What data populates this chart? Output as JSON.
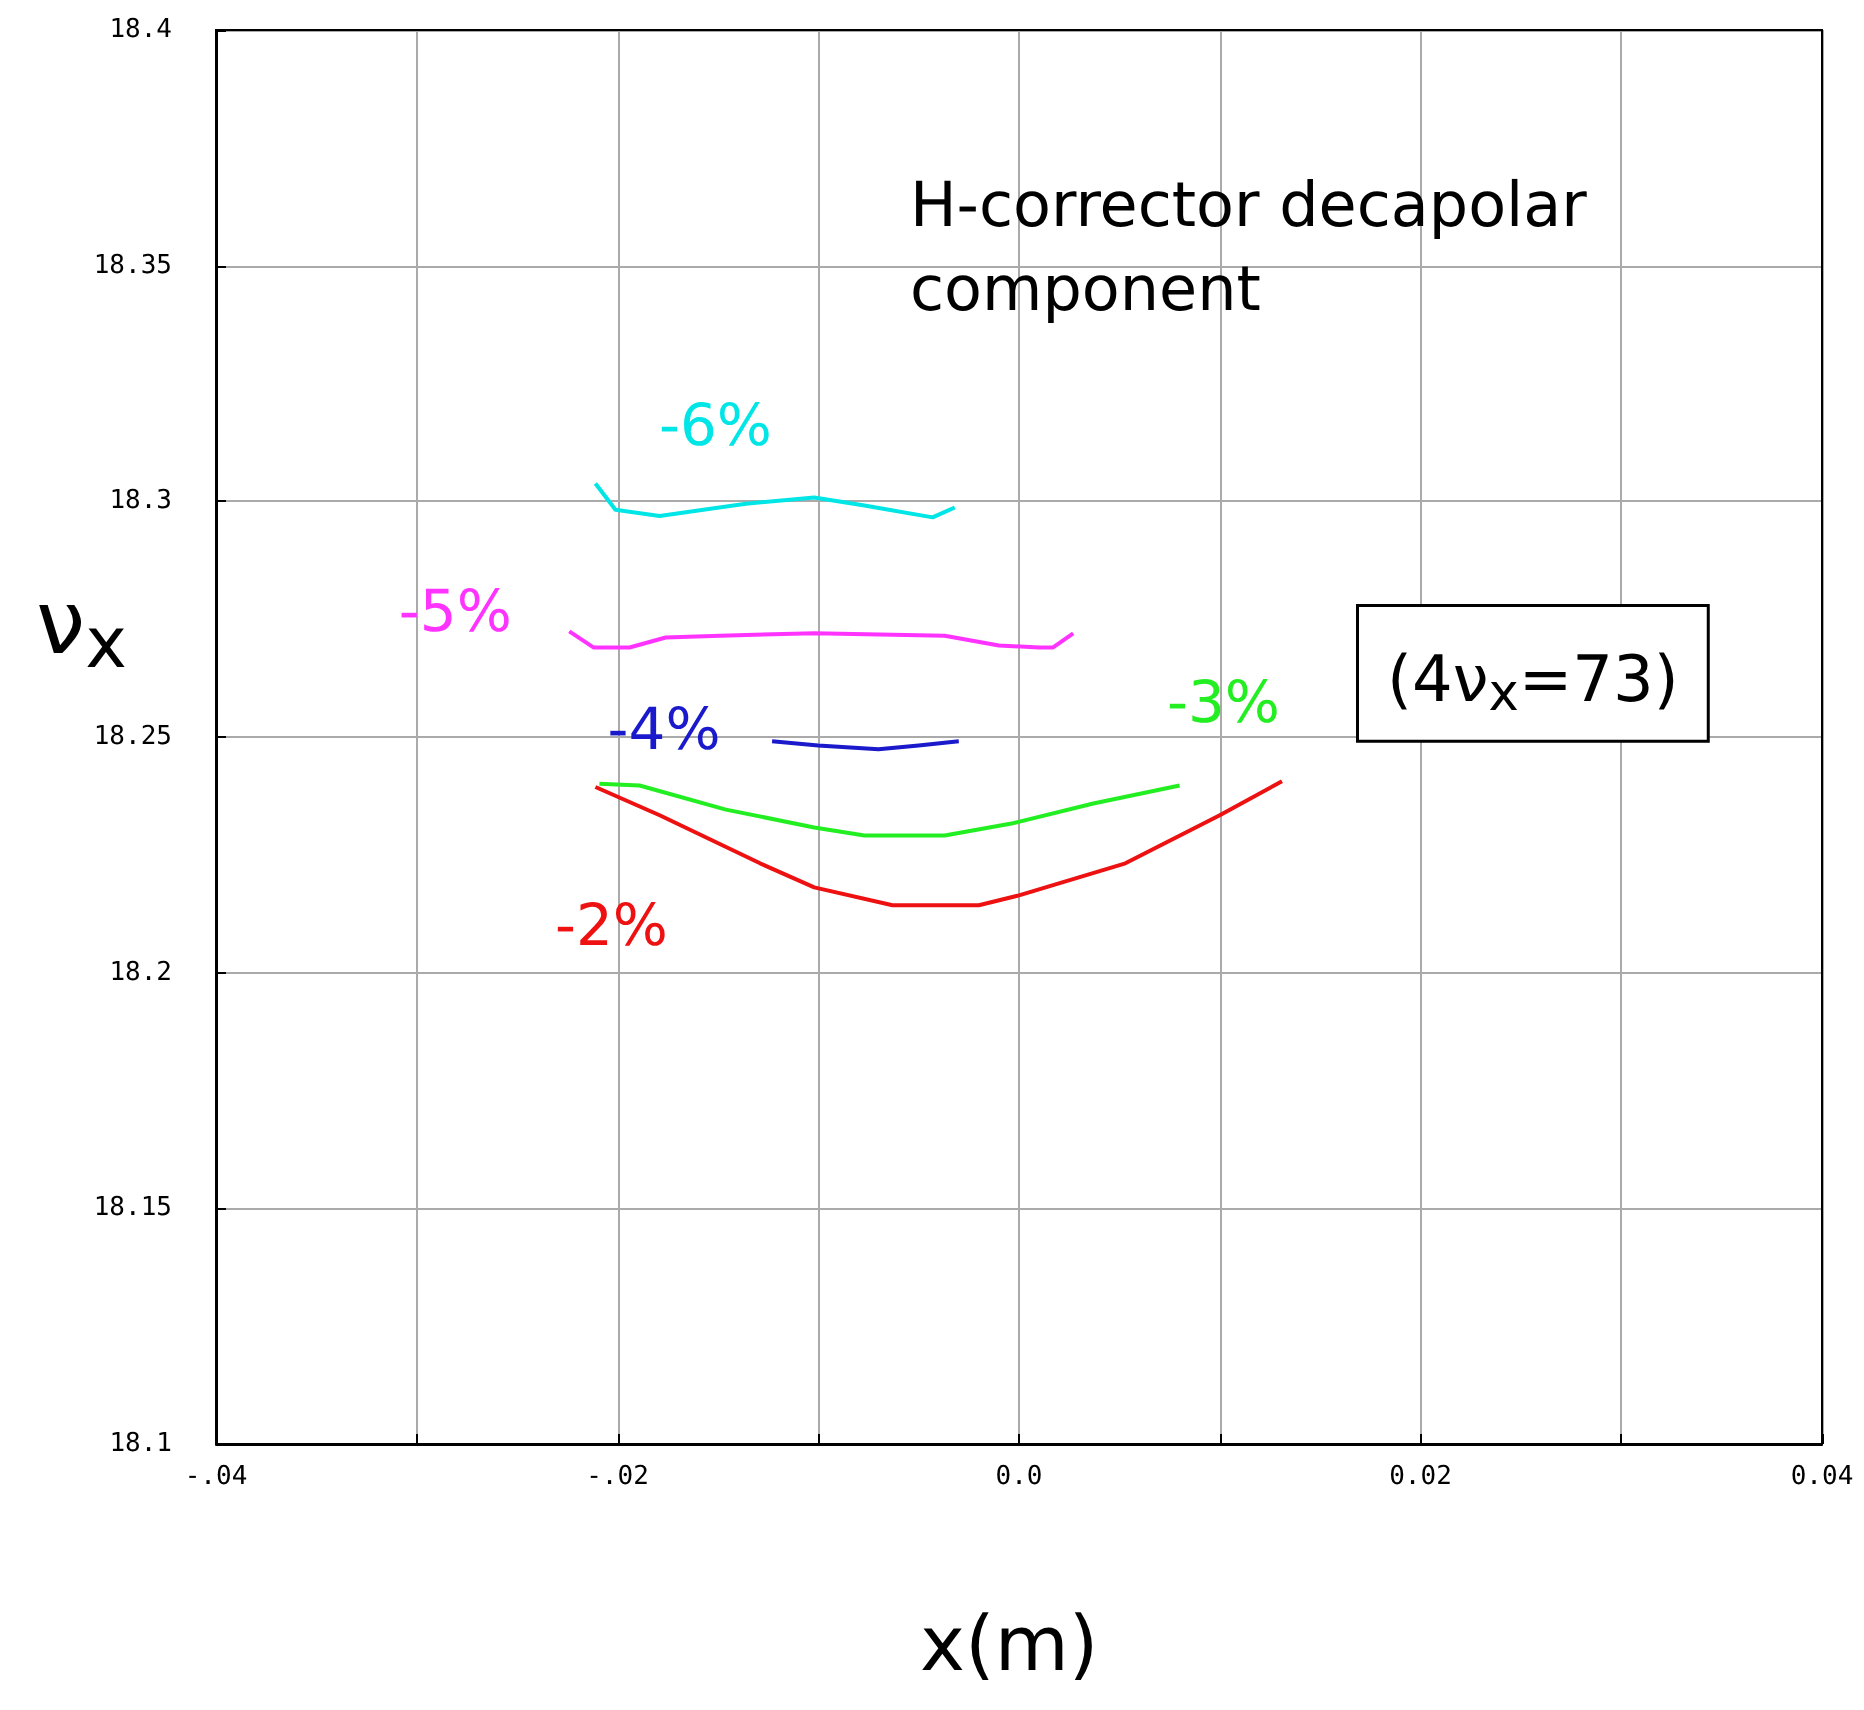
{
  "chart_data": {
    "type": "line",
    "title": "H-corrector decapolar component",
    "xlabel": "x(m)",
    "ylabel": "ν$_{x}$",
    "xlim": [
      -0.04,
      0.04
    ],
    "xticks": [
      {
        "value": -0.04,
        "label": "-.04"
      },
      {
        "value": -0.03,
        "label": null
      },
      {
        "value": -0.02,
        "label": "-.02"
      },
      {
        "value": -0.01,
        "label": null
      },
      {
        "value": 0,
        "label": "0.0"
      },
      {
        "value": 0.01,
        "label": null
      },
      {
        "value": 0.02,
        "label": "0.02"
      },
      {
        "value": 0.03,
        "label": null
      },
      {
        "value": 0.04,
        "label": "0.04"
      }
    ],
    "ylim": [
      18.1,
      18.4
    ],
    "yticks": [
      18.1,
      18.15,
      18.2,
      18.25,
      18.3,
      18.35,
      18.4
    ],
    "grid": true,
    "legend": false,
    "marker": "none",
    "line_style": "solid",
    "series": [
      {
        "name": "-6%",
        "color": "#00e5e5",
        "x": [
          -0.0211,
          -0.0201,
          -0.0179,
          -0.0136,
          -0.0102,
          -0.0077,
          -0.0043,
          -0.0032
        ],
        "values": [
          18.3038,
          18.2982,
          18.2969,
          18.2995,
          18.3008,
          18.2991,
          18.2966,
          18.2987
        ]
      },
      {
        "name": "-5%",
        "color": "#ff33ff",
        "x": [
          -0.0224,
          -0.0212,
          -0.0194,
          -0.0176,
          -0.0149,
          -0.0102,
          -0.0037,
          -0.001,
          0.001,
          0.0017,
          0.0027
        ],
        "values": [
          18.2724,
          18.269,
          18.269,
          18.2711,
          18.2715,
          18.272,
          18.2715,
          18.2694,
          18.269,
          18.269,
          18.272
        ]
      },
      {
        "name": "-4%",
        "color": "#1a1acc",
        "x": [
          -0.0123,
          -0.01,
          -0.007,
          -0.005,
          -0.003
        ],
        "values": [
          18.2491,
          18.2482,
          18.2474,
          18.2482,
          18.2491
        ]
      },
      {
        "name": "-3%",
        "color": "#22ee22",
        "x": [
          -0.0209,
          -0.0189,
          -0.0146,
          -0.0102,
          -0.0077,
          -0.0037,
          -0.0003,
          0.0037,
          0.008
        ],
        "values": [
          18.2401,
          18.2397,
          18.2346,
          18.2308,
          18.2291,
          18.2291,
          18.2317,
          18.2359,
          18.2397
        ]
      },
      {
        "name": "-2%",
        "color": "#ee1111",
        "x": [
          -0.0211,
          -0.0179,
          -0.0129,
          -0.0102,
          -0.0063,
          -0.002,
          0.0,
          0.0053,
          0.01,
          0.0131
        ],
        "values": [
          18.2394,
          18.2334,
          18.2232,
          18.2181,
          18.2143,
          18.2143,
          18.2164,
          18.2232,
          18.2334,
          18.2406
        ]
      }
    ],
    "annotations": [
      "(4ν$_{x}$=73)"
    ]
  }
}
